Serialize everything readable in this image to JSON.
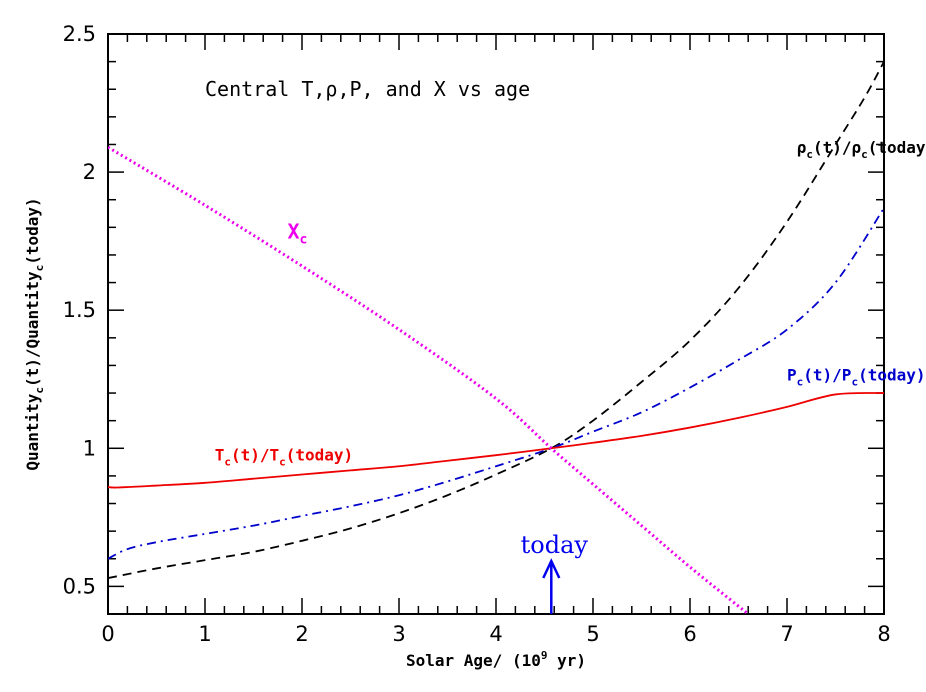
{
  "chart_data": {
    "type": "line",
    "title": "Central T,ρ,P, and X vs age",
    "xlabel": {
      "pre": "Solar Age/ (10",
      "sup": "9",
      "post": " yr)"
    },
    "ylabel": {
      "a": "Quantity",
      "a_sub": "c",
      "b": "(t)/Quantity",
      "b_sub": "c",
      "c": "(today)"
    },
    "xlim": [
      0,
      8
    ],
    "ylim": [
      0.4,
      2.5
    ],
    "xticks": [
      "0",
      "1",
      "2",
      "3",
      "4",
      "5",
      "6",
      "7",
      "8"
    ],
    "yticks": [
      "0.5",
      "1",
      "1.5",
      "2",
      "2.5"
    ],
    "grid": false,
    "series": [
      {
        "key": "rho",
        "color": "#000000",
        "style": "dashed",
        "x": [
          0,
          0.5,
          1,
          1.5,
          2,
          2.5,
          3,
          3.5,
          4,
          4.57,
          5,
          5.5,
          6,
          6.5,
          7,
          7.5,
          7.8,
          8
        ],
        "y": [
          0.53,
          0.565,
          0.595,
          0.625,
          0.665,
          0.71,
          0.765,
          0.83,
          0.905,
          1.0,
          1.1,
          1.24,
          1.39,
          1.58,
          1.82,
          2.1,
          2.27,
          2.4
        ]
      },
      {
        "key": "P",
        "color": "#0000cc",
        "style": "dashdot",
        "x": [
          0,
          0.2,
          0.5,
          1,
          1.5,
          2,
          2.5,
          3,
          3.5,
          4,
          4.57,
          5,
          5.5,
          6,
          6.5,
          7,
          7.5,
          8
        ],
        "y": [
          0.6,
          0.635,
          0.66,
          0.69,
          0.72,
          0.755,
          0.79,
          0.83,
          0.88,
          0.935,
          1.0,
          1.06,
          1.13,
          1.22,
          1.32,
          1.43,
          1.6,
          1.87
        ]
      },
      {
        "key": "T",
        "color": "#ee0000",
        "style": "solid",
        "x": [
          0,
          0.1,
          0.5,
          1,
          1.5,
          2,
          2.5,
          3,
          3.5,
          4,
          4.57,
          5,
          5.5,
          6,
          6.5,
          7,
          7.5,
          8
        ],
        "y": [
          0.86,
          0.858,
          0.865,
          0.875,
          0.89,
          0.905,
          0.92,
          0.935,
          0.955,
          0.975,
          1.0,
          1.02,
          1.045,
          1.075,
          1.11,
          1.15,
          1.195,
          1.2
        ]
      },
      {
        "key": "X",
        "color": "#ee00ee",
        "style": "dotted",
        "x": [
          0,
          1,
          2,
          3,
          4,
          4.57,
          5,
          5.5,
          6,
          6.6
        ],
        "y": [
          2.09,
          1.88,
          1.66,
          1.43,
          1.18,
          1.0,
          0.87,
          0.72,
          0.57,
          0.4
        ]
      }
    ],
    "annotations": [
      {
        "key": "rho",
        "color": "#000000",
        "x": 7.1,
        "y": 2.07,
        "parts": [
          {
            "t": "ρ"
          },
          {
            "t": "c",
            "sub": true
          },
          {
            "t": "(t)/ρ"
          },
          {
            "t": "c",
            "sub": true
          },
          {
            "t": "(today)"
          }
        ]
      },
      {
        "key": "P",
        "color": "#0000cc",
        "x": 7.0,
        "y": 1.245,
        "parts": [
          {
            "t": "P"
          },
          {
            "t": "c",
            "sub": true
          },
          {
            "t": "(t)/P"
          },
          {
            "t": "c",
            "sub": true
          },
          {
            "t": "(today)"
          }
        ]
      },
      {
        "key": "T",
        "color": "#ee0000",
        "x": 1.1,
        "y": 0.955,
        "parts": [
          {
            "t": "T"
          },
          {
            "t": "c",
            "sub": true
          },
          {
            "t": "(t)/T"
          },
          {
            "t": "c",
            "sub": true
          },
          {
            "t": "(today)"
          }
        ]
      },
      {
        "key": "X",
        "color": "#ee00ee",
        "x": 1.85,
        "y": 1.76,
        "parts": [
          {
            "t": "X"
          },
          {
            "t": "c",
            "sub": true
          }
        ]
      }
    ],
    "today_marker": {
      "label": "today",
      "x": 4.57,
      "color": "#0000ee"
    }
  }
}
